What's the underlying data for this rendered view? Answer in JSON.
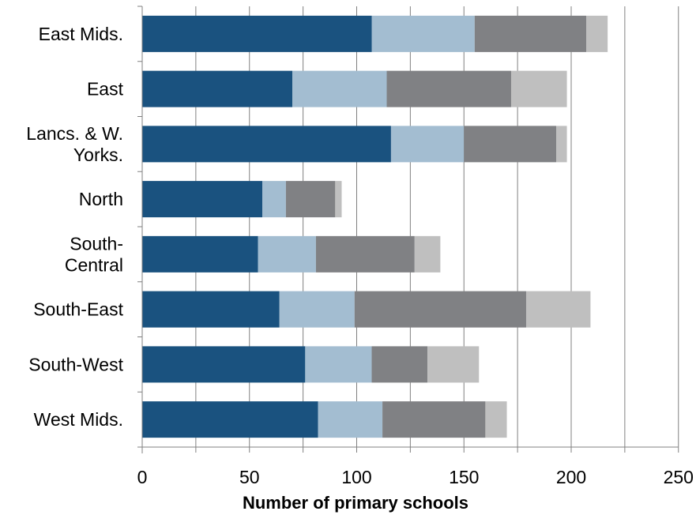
{
  "chart_data": {
    "type": "bar",
    "orientation": "horizontal",
    "stacked": true,
    "title": "",
    "xlabel": "Number of primary schools",
    "ylabel": "",
    "xlim": [
      0,
      250
    ],
    "xticks": [
      0,
      50,
      100,
      150,
      200,
      250
    ],
    "grid": true,
    "legend": "none",
    "categories": [
      [
        "East Mids."
      ],
      [
        "East"
      ],
      [
        "Lancs. & W.",
        "Yorks."
      ],
      [
        "North"
      ],
      [
        "South-",
        "Central"
      ],
      [
        "South-East"
      ],
      [
        "South-West"
      ],
      [
        "West Mids."
      ]
    ],
    "series": [
      {
        "color": "#1a527f",
        "values": [
          107,
          70,
          116,
          56,
          54,
          64,
          76,
          82
        ]
      },
      {
        "color": "#a3bdd1",
        "values": [
          48,
          44,
          34,
          11,
          27,
          35,
          31,
          30
        ]
      },
      {
        "color": "#808184",
        "values": [
          52,
          58,
          43,
          23,
          46,
          80,
          26,
          48
        ]
      },
      {
        "color": "#bfbfbf",
        "values": [
          10,
          26,
          5,
          3,
          12,
          30,
          24,
          10
        ]
      }
    ],
    "gridline_color": "#808080",
    "axis_color": "#808080"
  }
}
